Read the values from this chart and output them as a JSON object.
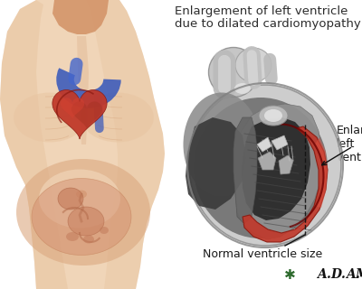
{
  "title_line1": "Enlargement of left ventricle",
  "title_line2": "due to dilated cardiomyopathy",
  "label_enlarged": "Enlarged\nleft\nventricle",
  "label_normal": "Normal ventricle size",
  "bg_color": "#ffffff",
  "title_color": "#2c2c2c",
  "label_color": "#1a1a1a",
  "adam_color": "#111111",
  "title_fontsize": 9.5,
  "label_fontsize": 9.0,
  "adam_fontsize": 9.5,
  "fig_width": 4.0,
  "fig_height": 3.2,
  "dpi": 100,
  "skin_base": "#d4956a",
  "skin_light": "#e8c4a0",
  "skin_lighter": "#f0d5b8",
  "skin_dark": "#c07848",
  "belly_color": "#dba880",
  "heart_red": "#c0392b",
  "heart_dark_red": "#8b1a10",
  "heart_gray": "#aaaaaa",
  "heart_dark_gray": "#555555",
  "heart_mid_gray": "#888888",
  "enlarged_red": "#c0392b",
  "annotation_color": "#111111",
  "adam_green": "#2d6a2d"
}
